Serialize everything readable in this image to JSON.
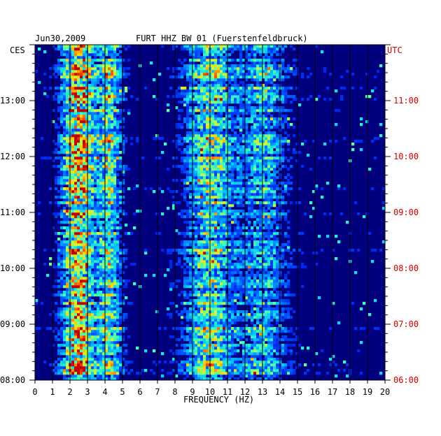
{
  "header": {
    "date": "Jun30,2009",
    "station": "FURT HHZ BW 01 (Fuerstenfeldbruck)"
  },
  "axes": {
    "left_zone": "CES",
    "right_zone": "UTC",
    "x_label": "FREQUENCY (HZ)"
  },
  "chart_data": {
    "type": "heatmap",
    "title": "FURT HHZ BW 01 (Fuerstenfeldbruck)",
    "date": "Jun30,2009",
    "xlabel": "FREQUENCY (HZ)",
    "xlim": [
      0,
      20
    ],
    "x_ticks": [
      0,
      1,
      2,
      3,
      4,
      5,
      6,
      7,
      8,
      9,
      10,
      11,
      12,
      13,
      14,
      15,
      16,
      17,
      18,
      19,
      20
    ],
    "y_left_timezone": "CES",
    "y_right_timezone": "UTC",
    "y_left_ticks": [
      "08:00",
      "09:00",
      "10:00",
      "11:00",
      "12:00",
      "13:00"
    ],
    "y_right_ticks": [
      "06:00",
      "07:00",
      "08:00",
      "09:00",
      "10:00",
      "11:00"
    ],
    "time_range_hours": [
      8.0,
      14.0
    ],
    "colormap": [
      "#00007f",
      "#0000d8",
      "#0050ff",
      "#00c8ff",
      "#40ffb8",
      "#c0ff40",
      "#ffd000",
      "#ff5000",
      "#c00000"
    ],
    "energy_bands": [
      {
        "freq_range": [
          1.5,
          3.5
        ],
        "level": "high"
      },
      {
        "freq_range": [
          3.5,
          5.0
        ],
        "level": "medium"
      },
      {
        "freq_range": [
          8.5,
          11.5
        ],
        "level": "medium"
      },
      {
        "freq_range": [
          11.5,
          14.5
        ],
        "level": "low"
      }
    ]
  }
}
